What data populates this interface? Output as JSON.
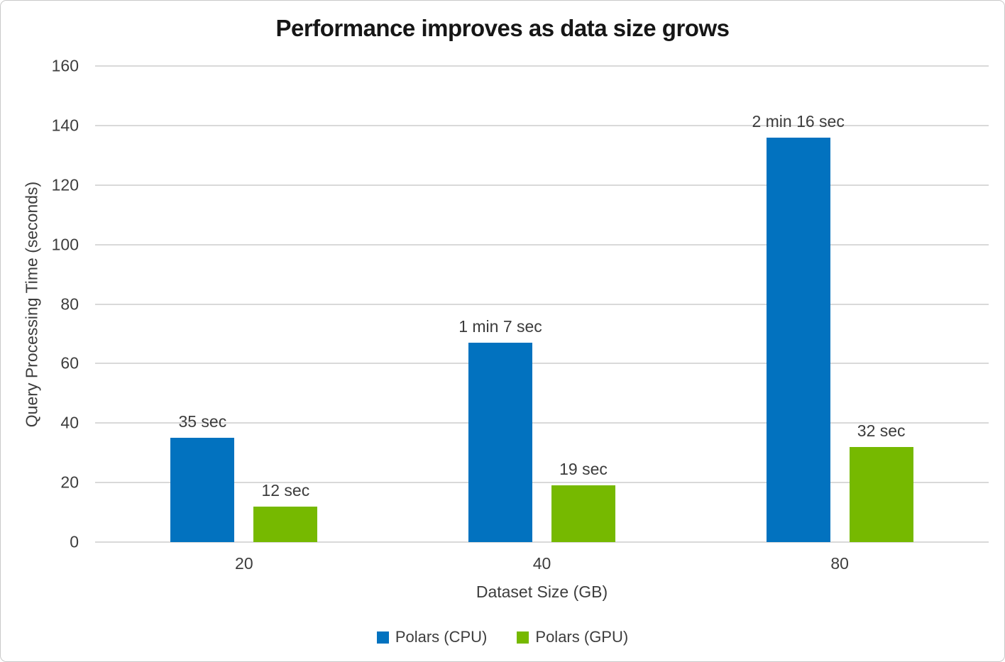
{
  "frame": {
    "background": "#ffffff",
    "border_color": "#c9c9c9"
  },
  "chart_data": {
    "type": "bar",
    "title": "Performance improves as data size grows",
    "xlabel": "Dataset Size (GB)",
    "ylabel": "Query Processing Time (seconds)",
    "categories": [
      "20",
      "40",
      "80"
    ],
    "series": [
      {
        "name": "Polars (CPU)",
        "color": "#0272bf",
        "values": [
          35,
          67,
          136
        ],
        "data_labels": [
          "35 sec",
          "1 min 7 sec",
          "2 min 16 sec"
        ]
      },
      {
        "name": "Polars (GPU)",
        "color": "#76b900",
        "values": [
          12,
          19,
          32
        ],
        "data_labels": [
          "12 sec",
          "19 sec",
          "32 sec"
        ]
      }
    ],
    "ylim": [
      0,
      160
    ],
    "yticks": [
      0,
      20,
      40,
      60,
      80,
      100,
      120,
      140,
      160
    ],
    "grid": "horizontal",
    "gridline_color": "#d9d9d9",
    "legend_position": "bottom",
    "text_color": "#3d3d3d",
    "title_color": "#161616"
  }
}
